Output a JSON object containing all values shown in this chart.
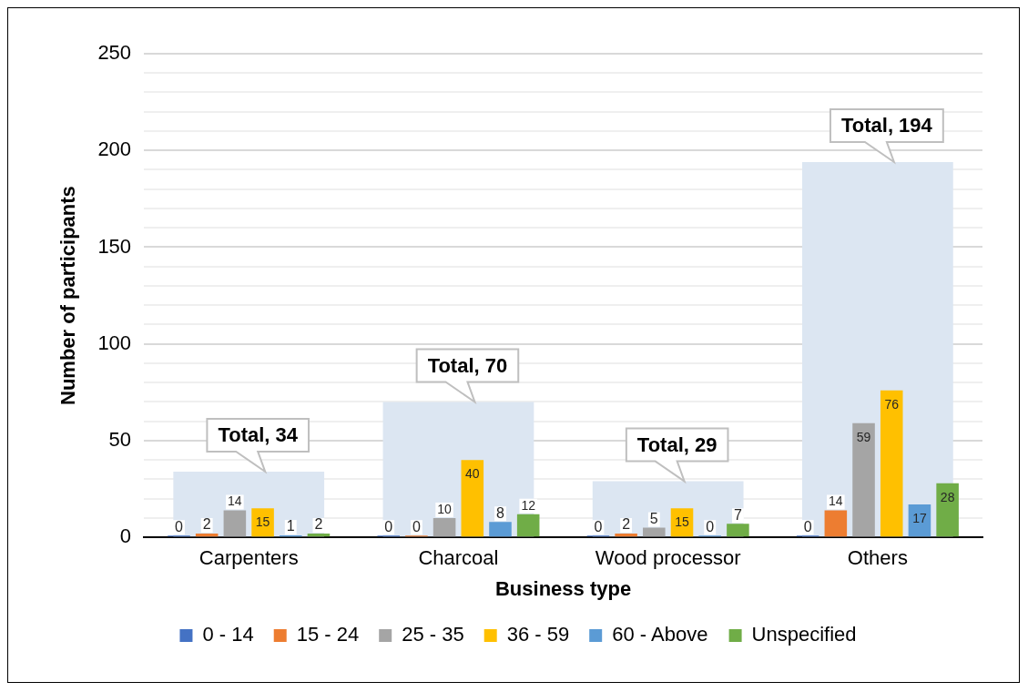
{
  "chart_data": {
    "type": "bar",
    "xlabel": "Business type",
    "ylabel": "Number of participants",
    "categories": [
      "Carpenters",
      "Charcoal",
      "Wood processor",
      "Others"
    ],
    "series": [
      {
        "color": "#dce6f2",
        "values": [
          34,
          70,
          29,
          194
        ],
        "value_labels": [
          "Total, 34",
          "Total, 70",
          "Total, 29",
          "Total, 194"
        ]
      },
      {
        "name": "0 - 14",
        "color": "#4472c4",
        "values": [
          0,
          0,
          0,
          0
        ]
      },
      {
        "name": "15 - 24",
        "color": "#ed7d31",
        "values": [
          2,
          0,
          2,
          14
        ]
      },
      {
        "name": "25 - 35",
        "color": "#a5a5a5",
        "values": [
          14,
          10,
          5,
          59
        ]
      },
      {
        "name": "36 - 59",
        "color": "#ffc000",
        "values": [
          15,
          40,
          15,
          76
        ]
      },
      {
        "name": "60 - Above",
        "color": "#5b9bd5",
        "values": [
          1,
          8,
          0,
          17
        ]
      },
      {
        "name": "Unspecified",
        "color": "#70ad47",
        "values": [
          2,
          12,
          7,
          28
        ]
      }
    ],
    "ylim": [
      0,
      250
    ],
    "yticks": [
      0,
      {
        "value": 10,
        "label": null
      },
      {
        "value": 20,
        "label": null
      },
      {
        "value": 30,
        "label": null
      },
      {
        "value": 40,
        "label": null
      },
      50,
      {
        "value": 60,
        "label": null
      },
      {
        "value": 70,
        "label": null
      },
      {
        "value": 80,
        "label": null
      },
      {
        "value": 90,
        "label": null
      },
      100,
      {
        "value": 110,
        "label": null
      },
      {
        "value": 120,
        "label": null
      },
      {
        "value": 130,
        "label": null
      },
      {
        "value": 140,
        "label": null
      },
      150,
      {
        "value": 160,
        "label": null
      },
      {
        "value": 170,
        "label": null
      },
      {
        "value": 180,
        "label": null
      },
      {
        "value": 190,
        "label": null
      },
      200,
      {
        "value": 210,
        "label": null
      },
      {
        "value": 220,
        "label": null
      },
      {
        "value": 230,
        "label": null
      },
      {
        "value": 240,
        "label": null
      },
      250
    ],
    "grid": "y",
    "legend": "bottom",
    "data_labels": true
  }
}
